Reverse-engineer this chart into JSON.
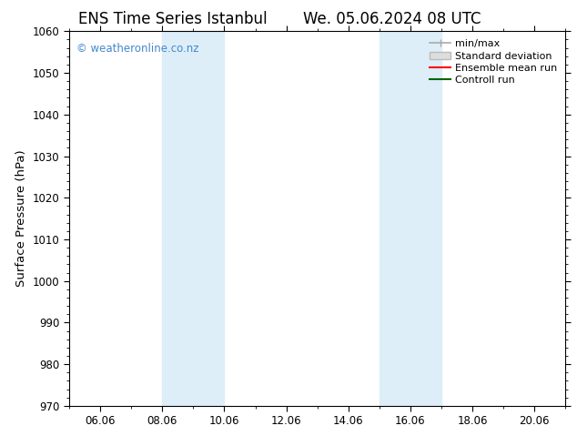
{
  "title": "ENS Time Series Istanbul",
  "title2": "We. 05.06.2024 08 UTC",
  "ylabel": "Surface Pressure (hPa)",
  "ylim": [
    970,
    1060
  ],
  "yticks": [
    970,
    980,
    990,
    1000,
    1010,
    1020,
    1030,
    1040,
    1050,
    1060
  ],
  "xlim_start": 5.0,
  "xlim_end": 21.0,
  "xtick_positions": [
    6,
    8,
    10,
    12,
    14,
    16,
    18,
    20
  ],
  "xtick_labels": [
    "06.06",
    "08.06",
    "10.06",
    "12.06",
    "14.06",
    "16.06",
    "18.06",
    "20.06"
  ],
  "shaded_bands": [
    {
      "x_start": 8.0,
      "x_end": 10.0
    },
    {
      "x_start": 15.0,
      "x_end": 17.0
    }
  ],
  "shaded_color": "#ddeef8",
  "watermark": "© weatheronline.co.nz",
  "watermark_color": "#4488cc",
  "bg_color": "#ffffff",
  "ax_bg_color": "#ffffff",
  "legend_items": [
    {
      "label": "min/max",
      "color": "#aaaaaa",
      "lw": 1.2
    },
    {
      "label": "Standard deviation",
      "color": "#cccccc",
      "lw": 6
    },
    {
      "label": "Ensemble mean run",
      "color": "#ff0000",
      "lw": 1.5
    },
    {
      "label": "Controll run",
      "color": "#008000",
      "lw": 1.5
    }
  ],
  "tick_fontsize": 8.5,
  "label_fontsize": 9.5,
  "title_fontsize": 12
}
